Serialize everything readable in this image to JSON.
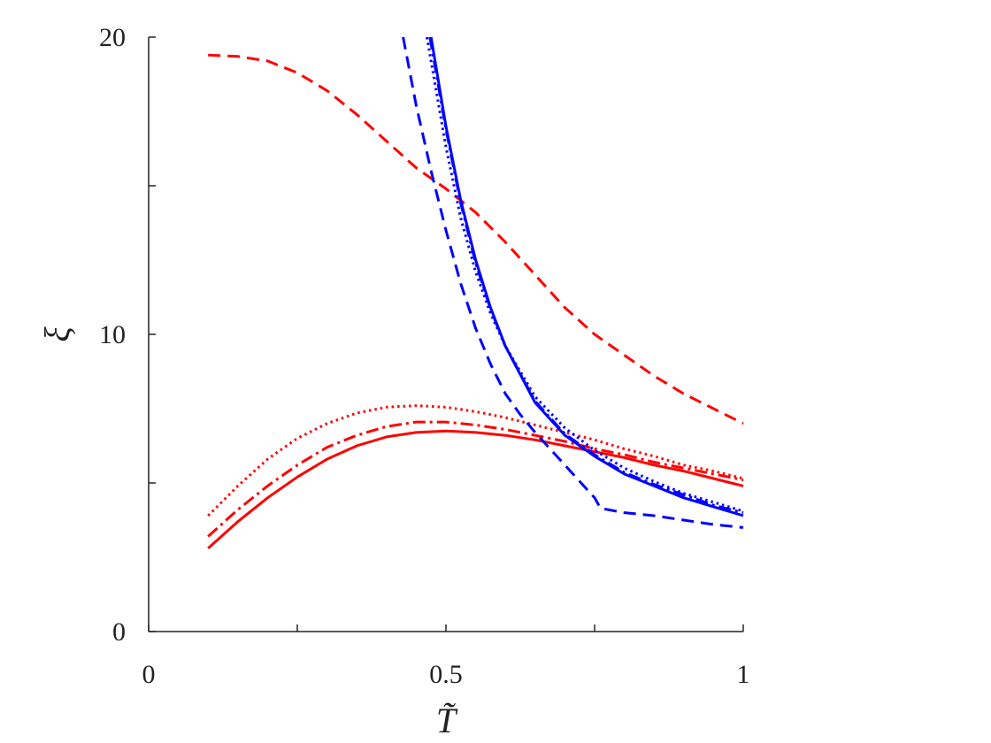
{
  "chart_data": {
    "type": "line",
    "title": "",
    "xlabel": "T̃",
    "ylabel": "ξ",
    "xlim": [
      0,
      1
    ],
    "ylim": [
      0,
      20
    ],
    "xticks": [
      {
        "value": 0,
        "label": "0"
      },
      {
        "value": 0.25,
        "label": ""
      },
      {
        "value": 0.5,
        "label": "0.5"
      },
      {
        "value": 0.75,
        "label": ""
      },
      {
        "value": 1,
        "label": "1"
      }
    ],
    "yticks": [
      {
        "value": 0,
        "label": "0"
      },
      {
        "value": 5,
        "label": ""
      },
      {
        "value": 10,
        "label": "10"
      },
      {
        "value": 15,
        "label": ""
      },
      {
        "value": 20,
        "label": "20"
      }
    ],
    "grid": false,
    "legend": "none",
    "series": [
      {
        "color": "#ff0000",
        "style": "solid",
        "x": [
          0.1,
          0.15,
          0.2,
          0.25,
          0.3,
          0.35,
          0.4,
          0.45,
          0.5,
          0.55,
          0.6,
          0.65,
          0.7,
          0.75,
          0.8,
          0.85,
          0.9,
          0.95,
          1.0
        ],
        "y": [
          2.8,
          3.7,
          4.5,
          5.2,
          5.8,
          6.25,
          6.55,
          6.7,
          6.75,
          6.7,
          6.6,
          6.45,
          6.25,
          6.05,
          5.85,
          5.6,
          5.4,
          5.15,
          4.9
        ]
      },
      {
        "color": "#ff0000",
        "style": "dashdot",
        "x": [
          0.1,
          0.15,
          0.2,
          0.25,
          0.3,
          0.35,
          0.4,
          0.45,
          0.5,
          0.55,
          0.6,
          0.65,
          0.7,
          0.75,
          0.8,
          0.85,
          0.9,
          0.95,
          1.0
        ],
        "y": [
          3.2,
          4.1,
          4.9,
          5.6,
          6.2,
          6.6,
          6.9,
          7.05,
          7.05,
          6.95,
          6.8,
          6.6,
          6.4,
          6.15,
          5.95,
          5.7,
          5.5,
          5.3,
          5.1
        ]
      },
      {
        "color": "#ff0000",
        "style": "dotted",
        "x": [
          0.1,
          0.15,
          0.2,
          0.25,
          0.3,
          0.35,
          0.4,
          0.45,
          0.5,
          0.55,
          0.6,
          0.65,
          0.7,
          0.75,
          0.8,
          0.85,
          0.9,
          0.95,
          1.0
        ],
        "y": [
          3.9,
          4.9,
          5.8,
          6.5,
          7.0,
          7.35,
          7.55,
          7.6,
          7.55,
          7.4,
          7.2,
          6.95,
          6.7,
          6.45,
          6.15,
          5.9,
          5.6,
          5.4,
          5.15
        ]
      },
      {
        "color": "#ff0000",
        "style": "dashed",
        "x": [
          0.1,
          0.15,
          0.2,
          0.25,
          0.3,
          0.35,
          0.4,
          0.45,
          0.5,
          0.55,
          0.6,
          0.65,
          0.7,
          0.75,
          0.8,
          0.85,
          0.9,
          0.95,
          1.0
        ],
        "y": [
          19.4,
          19.35,
          19.2,
          18.8,
          18.2,
          17.4,
          16.5,
          15.6,
          14.9,
          14.1,
          13.1,
          12.0,
          10.9,
          10.0,
          9.3,
          8.6,
          8.0,
          7.5,
          7.0
        ]
      },
      {
        "color": "#0000ff",
        "style": "solid",
        "x": [
          0.475,
          0.5,
          0.525,
          0.55,
          0.575,
          0.6,
          0.65,
          0.7,
          0.75,
          0.8,
          0.85,
          0.9,
          0.95,
          1.0
        ],
        "y": [
          20.0,
          17.0,
          14.5,
          12.5,
          10.9,
          9.6,
          7.7,
          6.6,
          5.9,
          5.3,
          4.9,
          4.5,
          4.2,
          3.9
        ]
      },
      {
        "color": "#0000ff",
        "style": "dashdot",
        "x": [
          0.473,
          0.5,
          0.525,
          0.55,
          0.575,
          0.6,
          0.65,
          0.7,
          0.75,
          0.8,
          0.85,
          0.9,
          0.95,
          1.0
        ],
        "y": [
          20.0,
          16.9,
          14.4,
          12.4,
          10.85,
          9.6,
          7.75,
          6.65,
          5.95,
          5.35,
          4.95,
          4.6,
          4.25,
          4.0
        ]
      },
      {
        "color": "#0000ff",
        "style": "dotted",
        "x": [
          0.468,
          0.5,
          0.525,
          0.55,
          0.575,
          0.6,
          0.65,
          0.7,
          0.75,
          0.8,
          0.85,
          0.9,
          0.95,
          1.0
        ],
        "y": [
          20.0,
          16.3,
          13.9,
          12.1,
          10.7,
          9.6,
          7.9,
          6.85,
          6.1,
          5.5,
          5.05,
          4.65,
          4.35,
          4.05
        ]
      },
      {
        "color": "#0000ff",
        "style": "dashed",
        "x": [
          0.428,
          0.45,
          0.475,
          0.5,
          0.525,
          0.55,
          0.575,
          0.6,
          0.625,
          0.65,
          0.7,
          0.75,
          0.76,
          0.8,
          0.85,
          0.9,
          0.95,
          1.0
        ],
        "y": [
          20.0,
          17.7,
          15.5,
          13.5,
          11.7,
          10.2,
          9.0,
          8.0,
          7.3,
          6.7,
          5.6,
          4.5,
          4.15,
          4.0,
          3.9,
          3.75,
          3.6,
          3.5
        ]
      }
    ]
  }
}
